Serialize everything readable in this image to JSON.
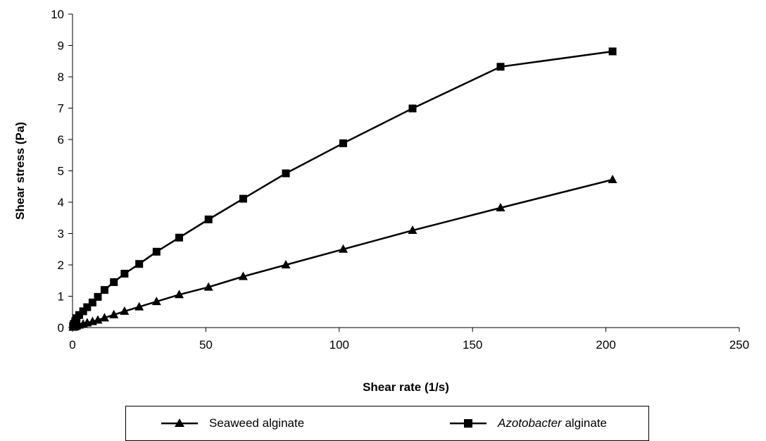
{
  "chart_data": {
    "type": "line",
    "xlabel": "Shear rate (1/s)",
    "ylabel": "Shear stress (Pa)",
    "xlim": [
      0,
      250
    ],
    "ylim": [
      0,
      10
    ],
    "x_ticks": [
      0,
      50,
      100,
      150,
      200,
      250
    ],
    "y_ticks": [
      0,
      1,
      2,
      3,
      4,
      5,
      6,
      7,
      8,
      9,
      10
    ],
    "grid": false,
    "legend_position": "bottom",
    "series": [
      {
        "name": "Seaweed alginate",
        "marker": "triangle",
        "color": "#000000",
        "x": [
          0.2,
          0.5,
          1.0,
          1.5,
          2.5,
          4,
          5.5,
          7.5,
          9.5,
          12,
          15.5,
          19.5,
          25,
          31.5,
          40,
          51,
          64,
          80,
          101.5,
          127.5,
          160.5,
          202.5
        ],
        "y": [
          0.01,
          0.02,
          0.03,
          0.05,
          0.08,
          0.11,
          0.15,
          0.19,
          0.24,
          0.31,
          0.41,
          0.52,
          0.66,
          0.83,
          1.05,
          1.29,
          1.63,
          2.0,
          2.5,
          3.1,
          3.82,
          4.72
        ]
      },
      {
        "name": "Azotobacter alginate",
        "name_parts": {
          "italic": "Azotobacter",
          "plain": " alginate"
        },
        "marker": "square",
        "color": "#000000",
        "x": [
          0.2,
          0.5,
          1.0,
          1.5,
          2.5,
          4,
          5.5,
          7.5,
          9.5,
          12,
          15.5,
          19.5,
          25,
          31.5,
          40,
          51,
          64,
          80,
          101.5,
          127.5,
          160.5,
          202.5
        ],
        "y": [
          0.05,
          0.12,
          0.2,
          0.3,
          0.4,
          0.52,
          0.65,
          0.8,
          0.98,
          1.2,
          1.45,
          1.72,
          2.03,
          2.42,
          2.87,
          3.45,
          4.11,
          4.92,
          5.88,
          6.99,
          8.32,
          8.81
        ]
      }
    ]
  }
}
